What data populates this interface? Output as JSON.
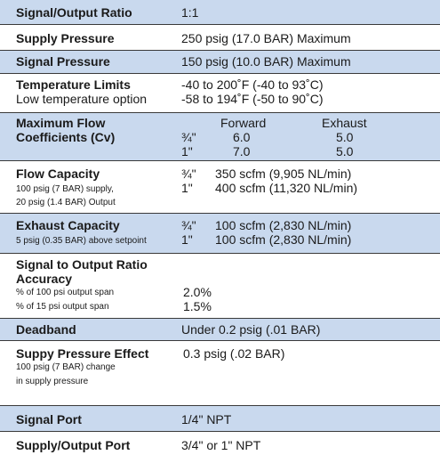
{
  "rows": [
    {
      "label": "Signal/Output Ratio",
      "value": "1:1"
    },
    {
      "label": "Supply Pressure",
      "value": "250 psig (17.0 BAR) Maximum"
    },
    {
      "label": "Signal Pressure",
      "value": "150 psig (10.0 BAR) Maximum"
    },
    {
      "label": "Temperature Limits",
      "sublabel": "Low temperature option",
      "values": [
        "-40 to 200˚F (-40 to 93˚C)",
        "-58 to 194˚F (-50 to 90˚C)"
      ]
    },
    {
      "label": "Maximum Flow Coefficients (Cv)",
      "columns": [
        "Forward",
        "Exhaust"
      ],
      "sizes": [
        {
          "size": "¾\"",
          "forward": "6.0",
          "exhaust": "5.0"
        },
        {
          "size": "1\"",
          "forward": "7.0",
          "exhaust": "5.0"
        }
      ]
    },
    {
      "label": "Flow Capacity",
      "notes": [
        "100 psig (7 BAR) supply,",
        "20 psig (1.4 BAR) Output"
      ],
      "sizes": [
        {
          "size": "¾\"",
          "value": "350 scfm (9,905 NL/min)"
        },
        {
          "size": "1\"",
          "value": "400 scfm (11,320 NL/min)"
        }
      ]
    },
    {
      "label": "Exhaust Capacity",
      "notes": [
        "5 psig (0.35 BAR) above setpoint"
      ],
      "sizes": [
        {
          "size": "¾\"",
          "value": "100 scfm (2,830 NL/min)"
        },
        {
          "size": "1\"",
          "value": "100 scfm (2,830 NL/min)"
        }
      ]
    },
    {
      "label": "Signal to Output Ratio Accuracy",
      "notes": [
        "% of 100 psi output span",
        "% of 15 psi output span"
      ],
      "values": [
        "2.0%",
        "1.5%"
      ]
    },
    {
      "label": "Deadband",
      "value": "Under 0.2 psig (.01 BAR)"
    },
    {
      "label": "Suppy Pressure Effect",
      "notes": [
        "100 psig (7 BAR) change",
        "in supply pressure"
      ],
      "value": "0.3 psig (.02 BAR)"
    },
    {
      "label": "Signal Port",
      "value": "1/4\" NPT"
    },
    {
      "label": "Supply/Output Port",
      "value": "3/4\" or 1\" NPT"
    }
  ]
}
